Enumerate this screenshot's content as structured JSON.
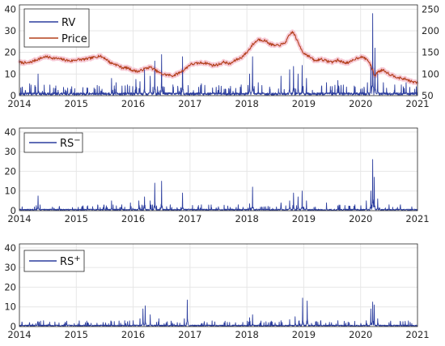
{
  "colors": {
    "rv": "#2b3d9e",
    "price": "#b3401c",
    "price_band": "#f4b8c8",
    "grid": "#e6e6e6",
    "axis": "#262626"
  },
  "chart_data": [
    {
      "type": "line",
      "title": "",
      "xlabel": "",
      "ylabel": "",
      "x_ticks": [
        "2014",
        "2015",
        "2016",
        "2017",
        "2018",
        "2019",
        "2020",
        "2021"
      ],
      "xlim": [
        2014,
        2021
      ],
      "y_ticks": [
        "0",
        "10",
        "20",
        "30",
        "40"
      ],
      "ylim": [
        0,
        42
      ],
      "y2_ticks": [
        "50",
        "100",
        "150",
        "200",
        "250"
      ],
      "y2lim": [
        50,
        260
      ],
      "grid": true,
      "legend_position": "top-left",
      "series": [
        {
          "name": "RV",
          "axis": "left",
          "baseline": 1.0,
          "spikes": [
            [
              2014.05,
              4.0
            ],
            [
              2014.18,
              5.5
            ],
            [
              2014.33,
              10.0
            ],
            [
              2014.6,
              3.5
            ],
            [
              2014.9,
              3.0
            ],
            [
              2015.2,
              3.5
            ],
            [
              2015.45,
              3.0
            ],
            [
              2015.62,
              8.0
            ],
            [
              2015.7,
              6.0
            ],
            [
              2015.9,
              5.0
            ],
            [
              2016.05,
              7.5
            ],
            [
              2016.12,
              6.5
            ],
            [
              2016.2,
              12.0
            ],
            [
              2016.3,
              9.0
            ],
            [
              2016.38,
              16.0
            ],
            [
              2016.5,
              19.0
            ],
            [
              2016.7,
              5.0
            ],
            [
              2016.87,
              18.0
            ],
            [
              2017.2,
              5.5
            ],
            [
              2017.6,
              3.0
            ],
            [
              2017.9,
              5.0
            ],
            [
              2018.05,
              10.0
            ],
            [
              2018.1,
              18.0
            ],
            [
              2018.2,
              6.0
            ],
            [
              2018.4,
              4.0
            ],
            [
              2018.6,
              9.0
            ],
            [
              2018.75,
              12.0
            ],
            [
              2018.82,
              13.5
            ],
            [
              2018.9,
              10.0
            ],
            [
              2018.97,
              14.0
            ],
            [
              2019.05,
              8.0
            ],
            [
              2019.4,
              6.0
            ],
            [
              2019.6,
              7.0
            ],
            [
              2019.75,
              4.0
            ],
            [
              2020.0,
              3.0
            ],
            [
              2020.12,
              6.0
            ],
            [
              2020.18,
              14.0
            ],
            [
              2020.21,
              38.0
            ],
            [
              2020.25,
              22.0
            ],
            [
              2020.3,
              10.0
            ],
            [
              2020.4,
              6.0
            ],
            [
              2020.6,
              5.0
            ],
            [
              2020.8,
              6.0
            ],
            [
              2020.95,
              3.0
            ]
          ]
        },
        {
          "name": "Price",
          "axis": "right",
          "points": [
            [
              2014.0,
              127
            ],
            [
              2014.15,
              125
            ],
            [
              2014.3,
              133
            ],
            [
              2014.45,
              140
            ],
            [
              2014.6,
              137
            ],
            [
              2014.75,
              134
            ],
            [
              2014.9,
              130
            ],
            [
              2015.0,
              133
            ],
            [
              2015.15,
              134
            ],
            [
              2015.3,
              138
            ],
            [
              2015.4,
              142
            ],
            [
              2015.5,
              137
            ],
            [
              2015.6,
              126
            ],
            [
              2015.7,
              122
            ],
            [
              2015.8,
              115
            ],
            [
              2015.9,
              114
            ],
            [
              2016.0,
              108
            ],
            [
              2016.1,
              106
            ],
            [
              2016.2,
              112
            ],
            [
              2016.3,
              116
            ],
            [
              2016.4,
              108
            ],
            [
              2016.5,
              100
            ],
            [
              2016.6,
              98
            ],
            [
              2016.7,
              96
            ],
            [
              2016.8,
              102
            ],
            [
              2016.9,
              110
            ],
            [
              2017.0,
              122
            ],
            [
              2017.1,
              124
            ],
            [
              2017.2,
              126
            ],
            [
              2017.3,
              125
            ],
            [
              2017.4,
              120
            ],
            [
              2017.5,
              122
            ],
            [
              2017.6,
              128
            ],
            [
              2017.7,
              123
            ],
            [
              2017.8,
              132
            ],
            [
              2017.9,
              138
            ],
            [
              2018.0,
              150
            ],
            [
              2018.1,
              168
            ],
            [
              2018.2,
              180
            ],
            [
              2018.3,
              178
            ],
            [
              2018.35,
              175
            ],
            [
              2018.4,
              170
            ],
            [
              2018.5,
              165
            ],
            [
              2018.6,
              168
            ],
            [
              2018.65,
              170
            ],
            [
              2018.7,
              178
            ],
            [
              2018.75,
              190
            ],
            [
              2018.8,
              198
            ],
            [
              2018.85,
              188
            ],
            [
              2018.9,
              172
            ],
            [
              2019.0,
              148
            ],
            [
              2019.05,
              145
            ],
            [
              2019.1,
              140
            ],
            [
              2019.2,
              130
            ],
            [
              2019.3,
              135
            ],
            [
              2019.4,
              130
            ],
            [
              2019.5,
              128
            ],
            [
              2019.6,
              132
            ],
            [
              2019.7,
              127
            ],
            [
              2019.8,
              126
            ],
            [
              2019.9,
              135
            ],
            [
              2020.0,
              140
            ],
            [
              2020.1,
              135
            ],
            [
              2020.15,
              128
            ],
            [
              2020.2,
              112
            ],
            [
              2020.25,
              95
            ],
            [
              2020.3,
              105
            ],
            [
              2020.4,
              110
            ],
            [
              2020.5,
              100
            ],
            [
              2020.6,
              95
            ],
            [
              2020.7,
              90
            ],
            [
              2020.8,
              88
            ],
            [
              2020.9,
              82
            ],
            [
              2021.0,
              80
            ]
          ]
        }
      ]
    },
    {
      "type": "line",
      "title": "",
      "xlabel": "",
      "ylabel": "",
      "x_ticks": [
        "2014",
        "2015",
        "2016",
        "2017",
        "2018",
        "2019",
        "2020",
        "2021"
      ],
      "xlim": [
        2014,
        2021
      ],
      "y_ticks": [
        "0",
        "10",
        "20",
        "30",
        "40"
      ],
      "ylim": [
        0,
        42
      ],
      "grid": true,
      "legend_position": "top-left",
      "series": [
        {
          "name": "RS",
          "superscript": "−",
          "baseline": 0.6,
          "spikes": [
            [
              2014.05,
              2.0
            ],
            [
              2014.33,
              7.5
            ],
            [
              2014.7,
              2.0
            ],
            [
              2015.2,
              2.5
            ],
            [
              2015.62,
              5.0
            ],
            [
              2015.8,
              3.0
            ],
            [
              2015.95,
              4.0
            ],
            [
              2016.1,
              5.0
            ],
            [
              2016.2,
              7.0
            ],
            [
              2016.3,
              5.0
            ],
            [
              2016.38,
              14.0
            ],
            [
              2016.5,
              15.0
            ],
            [
              2016.65,
              3.0
            ],
            [
              2016.87,
              9.0
            ],
            [
              2017.2,
              3.0
            ],
            [
              2017.5,
              2.0
            ],
            [
              2017.85,
              3.0
            ],
            [
              2018.05,
              3.5
            ],
            [
              2018.1,
              12.0
            ],
            [
              2018.3,
              2.0
            ],
            [
              2018.6,
              4.0
            ],
            [
              2018.75,
              5.0
            ],
            [
              2018.82,
              9.0
            ],
            [
              2018.9,
              7.0
            ],
            [
              2018.97,
              10.0
            ],
            [
              2019.05,
              5.0
            ],
            [
              2019.4,
              4.0
            ],
            [
              2019.6,
              2.5
            ],
            [
              2019.9,
              3.0
            ],
            [
              2020.1,
              5.0
            ],
            [
              2020.18,
              10.0
            ],
            [
              2020.21,
              26.0
            ],
            [
              2020.24,
              17.0
            ],
            [
              2020.3,
              6.0
            ],
            [
              2020.5,
              3.0
            ],
            [
              2020.7,
              3.0
            ],
            [
              2020.9,
              2.0
            ]
          ]
        }
      ]
    },
    {
      "type": "line",
      "title": "",
      "xlabel": "",
      "ylabel": "",
      "x_ticks": [
        "2014",
        "2015",
        "2016",
        "2017",
        "2018",
        "2019",
        "2020",
        "2021"
      ],
      "xlim": [
        2014,
        2021
      ],
      "y_ticks": [
        "0",
        "10",
        "20",
        "30",
        "40"
      ],
      "ylim": [
        0,
        42
      ],
      "grid": true,
      "legend_position": "top-left",
      "series": [
        {
          "name": "RS",
          "superscript": "+",
          "baseline": 0.6,
          "spikes": [
            [
              2014.05,
              2.0
            ],
            [
              2014.33,
              2.5
            ],
            [
              2014.8,
              1.5
            ],
            [
              2015.2,
              2.0
            ],
            [
              2015.62,
              2.5
            ],
            [
              2015.9,
              2.5
            ],
            [
              2016.0,
              3.0
            ],
            [
              2016.12,
              4.0
            ],
            [
              2016.17,
              9.0
            ],
            [
              2016.21,
              10.5
            ],
            [
              2016.3,
              6.0
            ],
            [
              2016.45,
              4.0
            ],
            [
              2016.6,
              2.5
            ],
            [
              2016.9,
              4.0
            ],
            [
              2016.95,
              13.5
            ],
            [
              2017.3,
              2.0
            ],
            [
              2017.6,
              2.0
            ],
            [
              2017.8,
              2.0
            ],
            [
              2018.05,
              4.5
            ],
            [
              2018.1,
              6.0
            ],
            [
              2018.3,
              2.0
            ],
            [
              2018.6,
              3.0
            ],
            [
              2018.75,
              3.5
            ],
            [
              2018.85,
              5.0
            ],
            [
              2018.92,
              3.0
            ],
            [
              2018.98,
              14.5
            ],
            [
              2019.06,
              13.0
            ],
            [
              2019.3,
              3.0
            ],
            [
              2019.6,
              3.0
            ],
            [
              2019.8,
              2.0
            ],
            [
              2020.1,
              3.0
            ],
            [
              2020.18,
              9.0
            ],
            [
              2020.21,
              12.5
            ],
            [
              2020.24,
              11.0
            ],
            [
              2020.3,
              4.0
            ],
            [
              2020.5,
              2.0
            ],
            [
              2020.7,
              2.5
            ],
            [
              2020.9,
              1.5
            ]
          ]
        }
      ]
    }
  ]
}
